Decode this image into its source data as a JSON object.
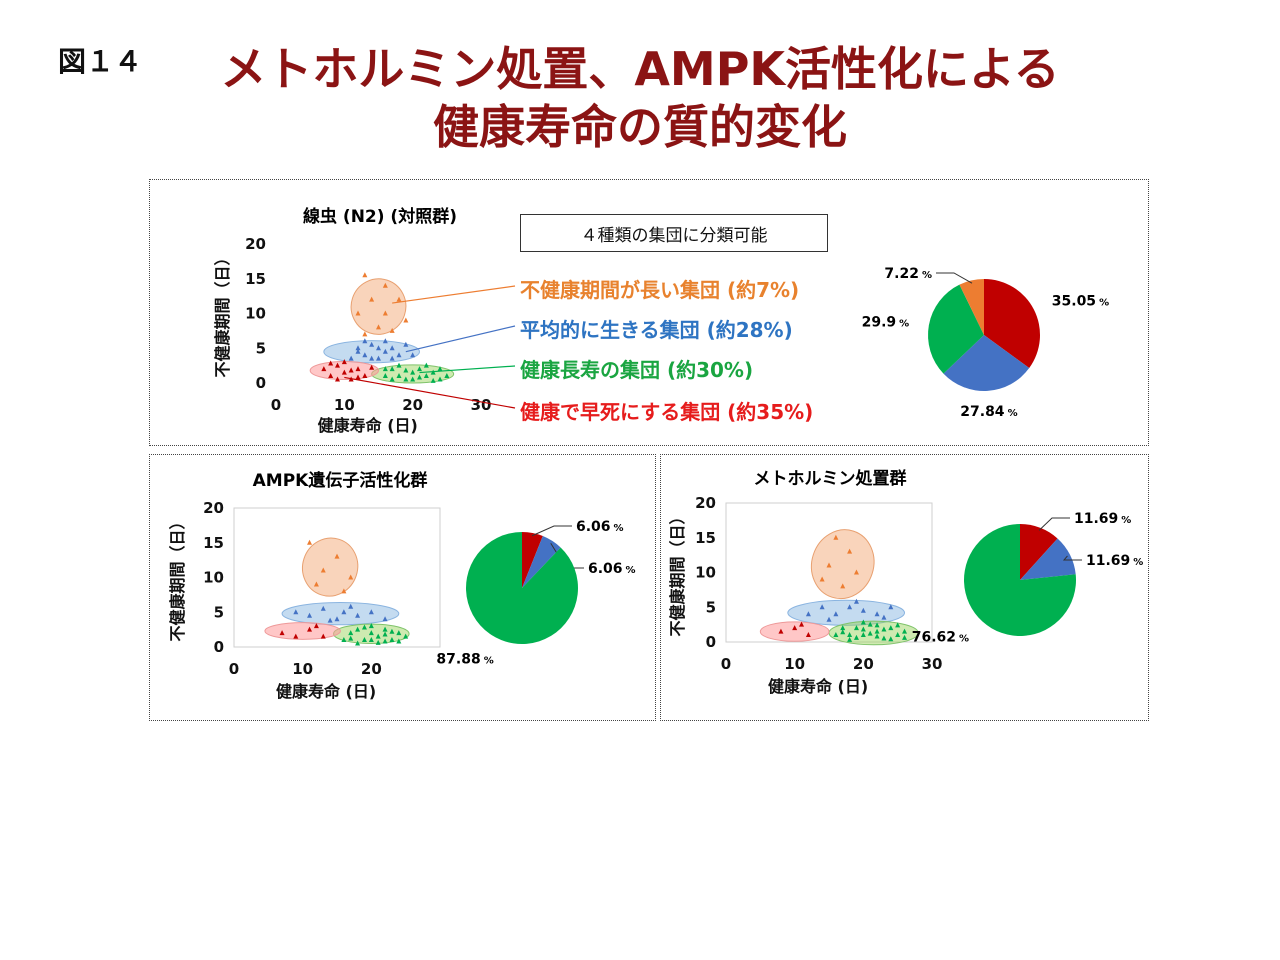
{
  "figure_label": "図１４",
  "title_line1": "メトホルミン処置、AMPK活性化による",
  "title_line2": "健康寿命の質的変化",
  "legend_box": "４種類の集団に分類可能",
  "groups": [
    {
      "label": "不健康期間が長い集団 (約7%)",
      "color": "#e8822e"
    },
    {
      "label": "平均的に生きる集団 (約28%)",
      "color": "#2e74c2"
    },
    {
      "label": "健康長寿の集団 (約30%)",
      "color": "#1aa541"
    },
    {
      "label": "健康で早死にする集団 (約35%)",
      "color": "#e61c1c"
    }
  ],
  "colors": {
    "red": "#c00000",
    "blue": "#4472c4",
    "green": "#00b050",
    "orange": "#ed7d31"
  },
  "chart_data": [
    {
      "type": "scatter",
      "title": "線虫 (N2) (対照群)",
      "xlabel": "健康寿命 (日)",
      "ylabel": "不健康期間（日）",
      "xlim": [
        0,
        30
      ],
      "ylim": [
        0,
        20
      ],
      "xticks": [
        "0",
        "10",
        "20",
        "30"
      ],
      "yticks": [
        "0",
        "5",
        "10",
        "15",
        "20"
      ],
      "clusters": [
        {
          "name": "不健康期間が長い集団",
          "color": "orange",
          "center": [
            15,
            11
          ],
          "spread": [
            4,
            4
          ],
          "points": [
            [
              13,
              15.5
            ],
            [
              16,
              14
            ],
            [
              14,
              12
            ],
            [
              18,
              12
            ],
            [
              12,
              10
            ],
            [
              16,
              10
            ],
            [
              19,
              9
            ],
            [
              15,
              8
            ],
            [
              13,
              7
            ],
            [
              17,
              7.5
            ]
          ]
        },
        {
          "name": "平均的に生きる集団",
          "color": "blue",
          "center": [
            14,
            4.5
          ],
          "spread": [
            7,
            1.6
          ],
          "points": [
            [
              12,
              5
            ],
            [
              13,
              4
            ],
            [
              14,
              5.5
            ],
            [
              15,
              3.5
            ],
            [
              16,
              4.5
            ],
            [
              17,
              5
            ],
            [
              18,
              4
            ],
            [
              11,
              3.5
            ],
            [
              13,
              6
            ],
            [
              19,
              5.5
            ],
            [
              15,
              5
            ],
            [
              20,
              4
            ],
            [
              14,
              3.5
            ],
            [
              16,
              6
            ],
            [
              12,
              4.5
            ],
            [
              17,
              3.5
            ]
          ]
        },
        {
          "name": "健康長寿の集団",
          "color": "green",
          "center": [
            20,
            1.3
          ],
          "spread": [
            6,
            1.3
          ],
          "points": [
            [
              16,
              1
            ],
            [
              17,
              2
            ],
            [
              18,
              1
            ],
            [
              19,
              0.5
            ],
            [
              20,
              1.5
            ],
            [
              21,
              2
            ],
            [
              22,
              1
            ],
            [
              23,
              1.5
            ],
            [
              24,
              0.5
            ],
            [
              18,
              2.5
            ],
            [
              20,
              0.5
            ],
            [
              22,
              2.5
            ],
            [
              25,
              1
            ],
            [
              17,
              0.5
            ],
            [
              19,
              1.8
            ],
            [
              21,
              0.8
            ],
            [
              23,
              0.3
            ],
            [
              16,
              2
            ],
            [
              24,
              2
            ]
          ]
        },
        {
          "name": "健康で早死にする集団",
          "color": "red",
          "center": [
            10,
            1.8
          ],
          "spread": [
            5,
            1.3
          ],
          "points": [
            [
              7,
              2
            ],
            [
              8,
              1
            ],
            [
              9,
              2.5
            ],
            [
              10,
              1.5
            ],
            [
              11,
              0.5
            ],
            [
              12,
              2
            ],
            [
              13,
              1
            ],
            [
              14,
              2.2
            ],
            [
              9,
              0.5
            ],
            [
              10,
              3
            ],
            [
              12,
              0.8
            ],
            [
              8,
              2.8
            ],
            [
              11,
              1.8
            ]
          ]
        }
      ]
    },
    {
      "type": "pie",
      "slices": [
        {
          "value": 35.05,
          "color": "red",
          "label": "35.05"
        },
        {
          "value": 27.84,
          "color": "blue",
          "label": "27.84"
        },
        {
          "value": 29.9,
          "color": "green",
          "label": "29.9"
        },
        {
          "value": 7.22,
          "color": "orange",
          "label": "7.22"
        }
      ],
      "unit": "%"
    },
    {
      "type": "scatter",
      "title": "AMPK遺伝子活性化群",
      "xlabel": "健康寿命 (日)",
      "ylabel": "不健康期間（日）",
      "xlim": [
        0,
        30
      ],
      "ylim": [
        0,
        20
      ],
      "xticks": [
        "0",
        "10",
        "20"
      ],
      "yticks": [
        "0",
        "5",
        "10",
        "15",
        "20"
      ],
      "clusters": [
        {
          "name": "不健康期間が長い集団",
          "color": "orange",
          "center": [
            14,
            11.5
          ],
          "spread": [
            4,
            4.2
          ],
          "points": [
            [
              11,
              15
            ],
            [
              15,
              13
            ],
            [
              13,
              11
            ],
            [
              17,
              10
            ],
            [
              12,
              9
            ],
            [
              16,
              8
            ]
          ]
        },
        {
          "name": "平均的に生きる集団",
          "color": "blue",
          "center": [
            15.5,
            4.8
          ],
          "spread": [
            8.5,
            1.6
          ],
          "points": [
            [
              9,
              5
            ],
            [
              11,
              4.5
            ],
            [
              13,
              5.5
            ],
            [
              15,
              4
            ],
            [
              16,
              5
            ],
            [
              18,
              4.5
            ],
            [
              20,
              5
            ],
            [
              22,
              4
            ],
            [
              17,
              5.8
            ],
            [
              14,
              3.8
            ]
          ]
        },
        {
          "name": "健康長寿の集団",
          "color": "green",
          "center": [
            20,
            1.9
          ],
          "spread": [
            5.5,
            1.4
          ],
          "points": [
            [
              16,
              1
            ],
            [
              17,
              2
            ],
            [
              18,
              2.5
            ],
            [
              19,
              1
            ],
            [
              20,
              2
            ],
            [
              21,
              1.5
            ],
            [
              22,
              2.5
            ],
            [
              23,
              1
            ],
            [
              24,
              2
            ],
            [
              18,
              0.5
            ],
            [
              20,
              3
            ],
            [
              22,
              0.8
            ],
            [
              25,
              1.5
            ],
            [
              19,
              2.8
            ],
            [
              21,
              0.6
            ],
            [
              23,
              2.2
            ],
            [
              17,
              1.2
            ],
            [
              24,
              0.8
            ],
            [
              20,
              1
            ],
            [
              22,
              1.8
            ]
          ]
        },
        {
          "name": "健康で早死にする集団",
          "color": "red",
          "center": [
            10,
            2.3
          ],
          "spread": [
            5.5,
            1.2
          ],
          "points": [
            [
              7,
              2
            ],
            [
              9,
              1.5
            ],
            [
              11,
              2.5
            ],
            [
              13,
              1.5
            ],
            [
              12,
              3
            ]
          ]
        }
      ]
    },
    {
      "type": "pie",
      "slices": [
        {
          "value": 6.06,
          "color": "red",
          "label": "6.06"
        },
        {
          "value": 6.06,
          "color": "blue",
          "label": "6.06"
        },
        {
          "value": 87.88,
          "color": "green",
          "label": "87.88"
        }
      ],
      "unit": "%"
    },
    {
      "type": "scatter",
      "title": "メトホルミン処置群",
      "xlabel": "健康寿命 (日)",
      "ylabel": "不健康期間（日）",
      "xlim": [
        0,
        30
      ],
      "ylim": [
        0,
        20
      ],
      "xticks": [
        "0",
        "10",
        "20",
        "30"
      ],
      "yticks": [
        "0",
        "5",
        "10",
        "15",
        "20"
      ],
      "clusters": [
        {
          "name": "不健康期間が長い集団",
          "color": "orange",
          "center": [
            17,
            11.2
          ],
          "spread": [
            4.5,
            5
          ],
          "points": [
            [
              16,
              15
            ],
            [
              18,
              13
            ],
            [
              15,
              11
            ],
            [
              19,
              10
            ],
            [
              17,
              8
            ],
            [
              14,
              9
            ]
          ]
        },
        {
          "name": "平均的に生きる集団",
          "color": "blue",
          "center": [
            17.5,
            4.2
          ],
          "spread": [
            8.5,
            1.8
          ],
          "points": [
            [
              12,
              4
            ],
            [
              14,
              5
            ],
            [
              16,
              4
            ],
            [
              18,
              5
            ],
            [
              20,
              4.5
            ],
            [
              22,
              4
            ],
            [
              24,
              5
            ],
            [
              19,
              5.8
            ],
            [
              15,
              3.2
            ],
            [
              23,
              3.5
            ]
          ]
        },
        {
          "name": "健康長寿の集団",
          "color": "green",
          "center": [
            21.5,
            1.3
          ],
          "spread": [
            6.5,
            1.7
          ],
          "points": [
            [
              16,
              1
            ],
            [
              17,
              2
            ],
            [
              18,
              1
            ],
            [
              19,
              2
            ],
            [
              20,
              1
            ],
            [
              21,
              2.5
            ],
            [
              22,
              1.5
            ],
            [
              23,
              0.5
            ],
            [
              24,
              2
            ],
            [
              25,
              1
            ],
            [
              26,
              1.5
            ],
            [
              18,
              0.3
            ],
            [
              20,
              2.8
            ],
            [
              22,
              0.8
            ],
            [
              24,
              0.4
            ],
            [
              17,
              1.4
            ],
            [
              19,
              0.6
            ],
            [
              21,
              1.2
            ],
            [
              23,
              1.8
            ],
            [
              25,
              2.4
            ],
            [
              26,
              0.6
            ],
            [
              20,
              1.8
            ],
            [
              22,
              2.4
            ]
          ]
        },
        {
          "name": "健康で早死にする集団",
          "color": "red",
          "center": [
            10,
            1.5
          ],
          "spread": [
            5,
            1.4
          ],
          "points": [
            [
              8,
              1.5
            ],
            [
              10,
              2
            ],
            [
              12,
              1
            ],
            [
              11,
              2.5
            ]
          ]
        }
      ]
    },
    {
      "type": "pie",
      "slices": [
        {
          "value": 11.69,
          "color": "red",
          "label": "11.69"
        },
        {
          "value": 11.69,
          "color": "blue",
          "label": "11.69"
        },
        {
          "value": 76.62,
          "color": "green",
          "label": "76.62"
        }
      ],
      "unit": "%"
    }
  ]
}
